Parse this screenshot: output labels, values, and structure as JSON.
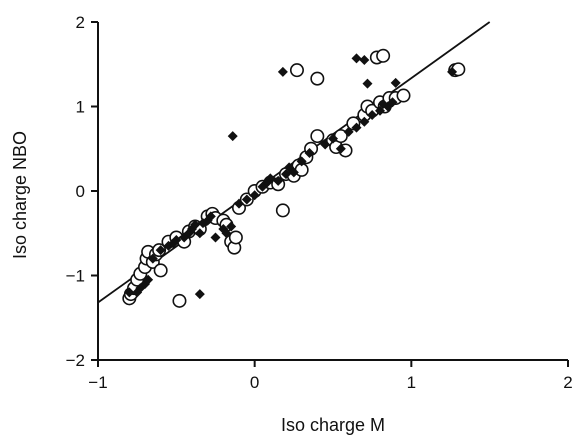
{
  "chart_data": {
    "type": "scatter",
    "title": "",
    "xlabel": "Iso charge M",
    "ylabel": "Iso charge NBO",
    "xlim": [
      -1,
      2
    ],
    "ylim": [
      -2,
      2
    ],
    "x_ticks": [
      -1,
      0,
      1,
      2
    ],
    "y_ticks": [
      -2,
      -1,
      0,
      1,
      2
    ],
    "x_tick_labels": [
      "−1",
      "0",
      "1",
      "2"
    ],
    "y_tick_labels": [
      "−2",
      "−1",
      "0",
      "1",
      "2"
    ],
    "grid": false,
    "legend": "none",
    "colors": {
      "axis": "#111111",
      "marker": "#111111",
      "fill_open": "#ffffff"
    },
    "fit_line": {
      "x": [
        -1,
        1.5
      ],
      "y": [
        -1.32,
        2.0
      ]
    },
    "series": [
      {
        "marker": "open-circle",
        "points": [
          [
            -0.8,
            -1.27
          ],
          [
            -0.79,
            -1.22
          ],
          [
            -0.77,
            -1.15
          ],
          [
            -0.75,
            -1.05
          ],
          [
            -0.73,
            -0.98
          ],
          [
            -0.7,
            -0.9
          ],
          [
            -0.69,
            -0.8
          ],
          [
            -0.68,
            -0.72
          ],
          [
            -0.65,
            -0.84
          ],
          [
            -0.63,
            -0.75
          ],
          [
            -0.61,
            -0.7
          ],
          [
            -0.6,
            -0.94
          ],
          [
            -0.55,
            -0.6
          ],
          [
            -0.5,
            -0.55
          ],
          [
            -0.48,
            -1.3
          ],
          [
            -0.45,
            -0.6
          ],
          [
            -0.42,
            -0.48
          ],
          [
            -0.38,
            -0.42
          ],
          [
            -0.35,
            -0.45
          ],
          [
            -0.3,
            -0.3
          ],
          [
            -0.27,
            -0.27
          ],
          [
            -0.25,
            -0.32
          ],
          [
            -0.2,
            -0.35
          ],
          [
            -0.18,
            -0.4
          ],
          [
            -0.15,
            -0.6
          ],
          [
            -0.13,
            -0.67
          ],
          [
            -0.12,
            -0.55
          ],
          [
            -0.1,
            -0.2
          ],
          [
            -0.05,
            -0.1
          ],
          [
            0.0,
            0.0
          ],
          [
            0.05,
            0.05
          ],
          [
            0.1,
            0.1
          ],
          [
            0.15,
            0.08
          ],
          [
            0.18,
            -0.23
          ],
          [
            0.2,
            0.2
          ],
          [
            0.25,
            0.18
          ],
          [
            0.28,
            0.3
          ],
          [
            0.3,
            0.25
          ],
          [
            0.33,
            0.4
          ],
          [
            0.36,
            0.5
          ],
          [
            0.4,
            0.65
          ],
          [
            0.5,
            0.6
          ],
          [
            0.52,
            0.52
          ],
          [
            0.55,
            0.65
          ],
          [
            0.58,
            0.48
          ],
          [
            0.63,
            0.8
          ],
          [
            0.7,
            0.9
          ],
          [
            0.72,
            1.0
          ],
          [
            0.75,
            0.95
          ],
          [
            0.8,
            1.05
          ],
          [
            0.83,
            1.0
          ],
          [
            0.86,
            1.1
          ],
          [
            0.9,
            1.1
          ],
          [
            0.95,
            1.13
          ],
          [
            0.78,
            1.58
          ],
          [
            0.82,
            1.6
          ],
          [
            1.28,
            1.43
          ],
          [
            1.3,
            1.44
          ],
          [
            0.27,
            1.43
          ],
          [
            0.4,
            1.33
          ]
        ]
      },
      {
        "marker": "filled-diamond",
        "points": [
          [
            -0.8,
            -1.2
          ],
          [
            -0.75,
            -1.2
          ],
          [
            -0.73,
            -1.15
          ],
          [
            -0.7,
            -1.1
          ],
          [
            -0.68,
            -1.05
          ],
          [
            -0.65,
            -0.8
          ],
          [
            -0.6,
            -0.7
          ],
          [
            -0.55,
            -0.65
          ],
          [
            -0.52,
            -0.62
          ],
          [
            -0.5,
            -0.58
          ],
          [
            -0.45,
            -0.55
          ],
          [
            -0.42,
            -0.5
          ],
          [
            -0.4,
            -0.45
          ],
          [
            -0.38,
            -0.4
          ],
          [
            -0.35,
            -1.22
          ],
          [
            -0.35,
            -0.5
          ],
          [
            -0.33,
            -0.38
          ],
          [
            -0.3,
            -0.35
          ],
          [
            -0.28,
            -0.3
          ],
          [
            -0.25,
            -0.55
          ],
          [
            -0.2,
            -0.45
          ],
          [
            -0.18,
            -0.5
          ],
          [
            -0.15,
            -0.42
          ],
          [
            -0.14,
            0.65
          ],
          [
            -0.1,
            -0.15
          ],
          [
            -0.05,
            -0.1
          ],
          [
            0.0,
            -0.05
          ],
          [
            0.05,
            0.05
          ],
          [
            0.08,
            0.1
          ],
          [
            0.1,
            0.15
          ],
          [
            0.15,
            0.12
          ],
          [
            0.2,
            0.2
          ],
          [
            0.22,
            0.28
          ],
          [
            0.25,
            0.22
          ],
          [
            0.3,
            0.35
          ],
          [
            0.35,
            0.45
          ],
          [
            0.45,
            0.55
          ],
          [
            0.5,
            0.62
          ],
          [
            0.55,
            0.5
          ],
          [
            0.6,
            0.7
          ],
          [
            0.65,
            0.75
          ],
          [
            0.7,
            0.82
          ],
          [
            0.75,
            0.9
          ],
          [
            0.8,
            0.95
          ],
          [
            0.85,
            1.0
          ],
          [
            0.88,
            1.05
          ],
          [
            0.9,
            1.28
          ],
          [
            0.65,
            1.57
          ],
          [
            0.7,
            1.55
          ],
          [
            0.18,
            1.41
          ],
          [
            0.72,
            1.27
          ],
          [
            1.26,
            1.41
          ],
          [
            0.82,
            1.03
          ]
        ]
      }
    ]
  }
}
